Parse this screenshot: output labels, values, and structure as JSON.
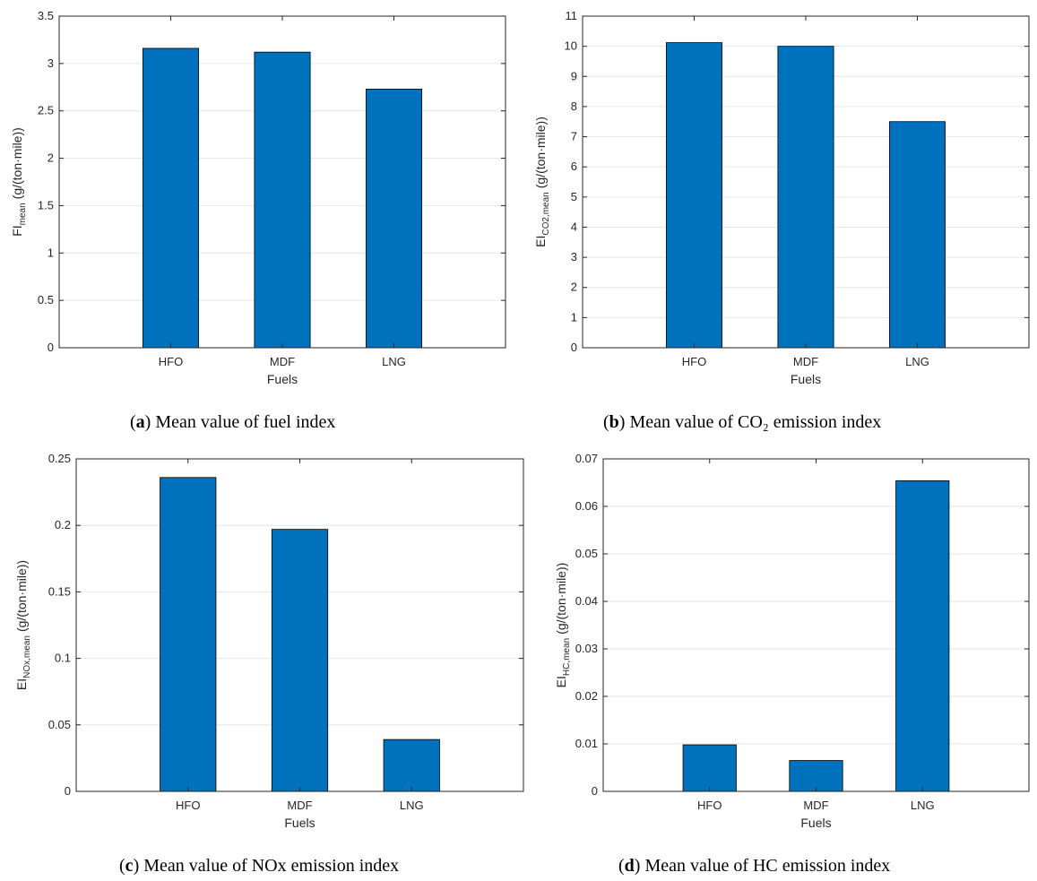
{
  "chart_data": [
    {
      "type": "bar",
      "categories": [
        "HFO",
        "MDF",
        "LNG"
      ],
      "values": [
        3.16,
        3.12,
        2.73
      ],
      "xlabel": "Fuels",
      "ylabel": {
        "main": "FI",
        "sub": "mean",
        "unit": "(g/(ton·mile))"
      },
      "ylim": [
        0,
        3.5
      ],
      "yticks": [
        0,
        0.5,
        1,
        1.5,
        2,
        2.5,
        3,
        3.5
      ],
      "ytick_labels": [
        "0",
        "0.5",
        "1",
        "1.5",
        "2",
        "2.5",
        "3",
        "3.5"
      ],
      "grid": true,
      "bar_color": "#0072BD",
      "caption": {
        "tag": "a",
        "text": "Mean value of fuel index"
      }
    },
    {
      "type": "bar",
      "categories": [
        "HFO",
        "MDF",
        "LNG"
      ],
      "values": [
        10.12,
        10.0,
        7.5
      ],
      "xlabel": "Fuels",
      "ylabel": {
        "main": "EI",
        "sub": "CO2,mean",
        "unit": "(g/(ton·mile))"
      },
      "ylim": [
        0,
        11
      ],
      "yticks": [
        0,
        1,
        2,
        3,
        4,
        5,
        6,
        7,
        8,
        9,
        10,
        11
      ],
      "ytick_labels": [
        "0",
        "1",
        "2",
        "3",
        "4",
        "5",
        "6",
        "7",
        "8",
        "9",
        "10",
        "11"
      ],
      "grid": true,
      "bar_color": "#0072BD",
      "caption": {
        "tag": "b",
        "text": "Mean value of CO₂ emission index"
      }
    },
    {
      "type": "bar",
      "categories": [
        "HFO",
        "MDF",
        "LNG"
      ],
      "values": [
        0.236,
        0.197,
        0.039
      ],
      "xlabel": "Fuels",
      "ylabel": {
        "main": "EI",
        "sub": "NOx,mean",
        "unit": "(g/(ton·mile))"
      },
      "ylim": [
        0,
        0.25
      ],
      "yticks": [
        0,
        0.05,
        0.1,
        0.15,
        0.2,
        0.25
      ],
      "ytick_labels": [
        "0",
        "0.05",
        "0.1",
        "0.15",
        "0.2",
        "0.25"
      ],
      "grid": true,
      "bar_color": "#0072BD",
      "caption": {
        "tag": "c",
        "text": "Mean value of NOx emission index"
      }
    },
    {
      "type": "bar",
      "categories": [
        "HFO",
        "MDF",
        "LNG"
      ],
      "values": [
        0.0098,
        0.0065,
        0.0654
      ],
      "xlabel": "Fuels",
      "ylabel": {
        "main": "EI",
        "sub": "HC,mean",
        "unit": "(g/(ton·mile))"
      },
      "ylim": [
        0,
        0.07
      ],
      "yticks": [
        0,
        0.01,
        0.02,
        0.03,
        0.04,
        0.05,
        0.06,
        0.07
      ],
      "ytick_labels": [
        "0",
        "0.01",
        "0.02",
        "0.03",
        "0.04",
        "0.05",
        "0.06",
        "0.07"
      ],
      "grid": true,
      "bar_color": "#0072BD",
      "caption": {
        "tag": "d",
        "text": "Mean value of HC emission index"
      }
    }
  ]
}
